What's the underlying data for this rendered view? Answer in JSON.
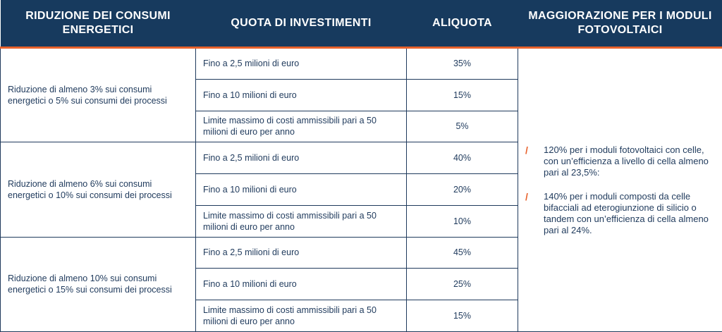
{
  "headers": {
    "riduzione": "RIDUZIONE DEI CONSUMI ENERGETICI",
    "quota": "QUOTA DI INVESTIMENTI",
    "aliquota": "ALIQUOTA",
    "maggiorazione": "MAGGIORAZIONE PER I MODULI FOTOVOLTAICI"
  },
  "groups": [
    {
      "riduzione": "Riduzione di almeno 3% sui consumi energetici o 5% sui consumi dei processi",
      "rows": [
        {
          "quota": "Fino a 2,5 milioni di euro",
          "aliquota": "35%"
        },
        {
          "quota": "Fino a 10 milioni di euro",
          "aliquota": "15%"
        },
        {
          "quota": "Limite massimo di costi ammissibili pari a 50 milioni di euro per anno",
          "aliquota": "5%"
        }
      ]
    },
    {
      "riduzione": "Riduzione di almeno 6% sui consumi energetici o 10% sui consumi dei processi",
      "rows": [
        {
          "quota": "Fino a 2,5 milioni di euro",
          "aliquota": "40%"
        },
        {
          "quota": "Fino a 10 milioni di euro",
          "aliquota": "20%"
        },
        {
          "quota": "Limite massimo di costi ammissibili pari a 50 milioni di euro per anno",
          "aliquota": "10%"
        }
      ]
    },
    {
      "riduzione": "Riduzione di almeno 10% sui consumi energetici o 15% sui consumi dei processi",
      "rows": [
        {
          "quota": "Fino a 2,5 milioni di euro",
          "aliquota": "45%"
        },
        {
          "quota": "Fino a 10 milioni di euro",
          "aliquota": "25%"
        },
        {
          "quota": "Limite massimo di costi ammissibili pari a 50 milioni di euro per anno",
          "aliquota": "15%"
        }
      ]
    }
  ],
  "maggiorazione": {
    "bullet_symbol": "/",
    "items": [
      "120% per i moduli fotovoltaici con celle, con un’efficienza a livello di cella almeno pari al 23,5%:",
      "140% per i moduli composti da celle bifacciali ad eterogiunzione di silicio o tandem con un’efficienza di cella almeno pari al 24%."
    ]
  },
  "colors": {
    "header_bg": "#173a5e",
    "accent": "#e8622c",
    "text": "#1f3a5c",
    "border": "#1f3a5c"
  }
}
